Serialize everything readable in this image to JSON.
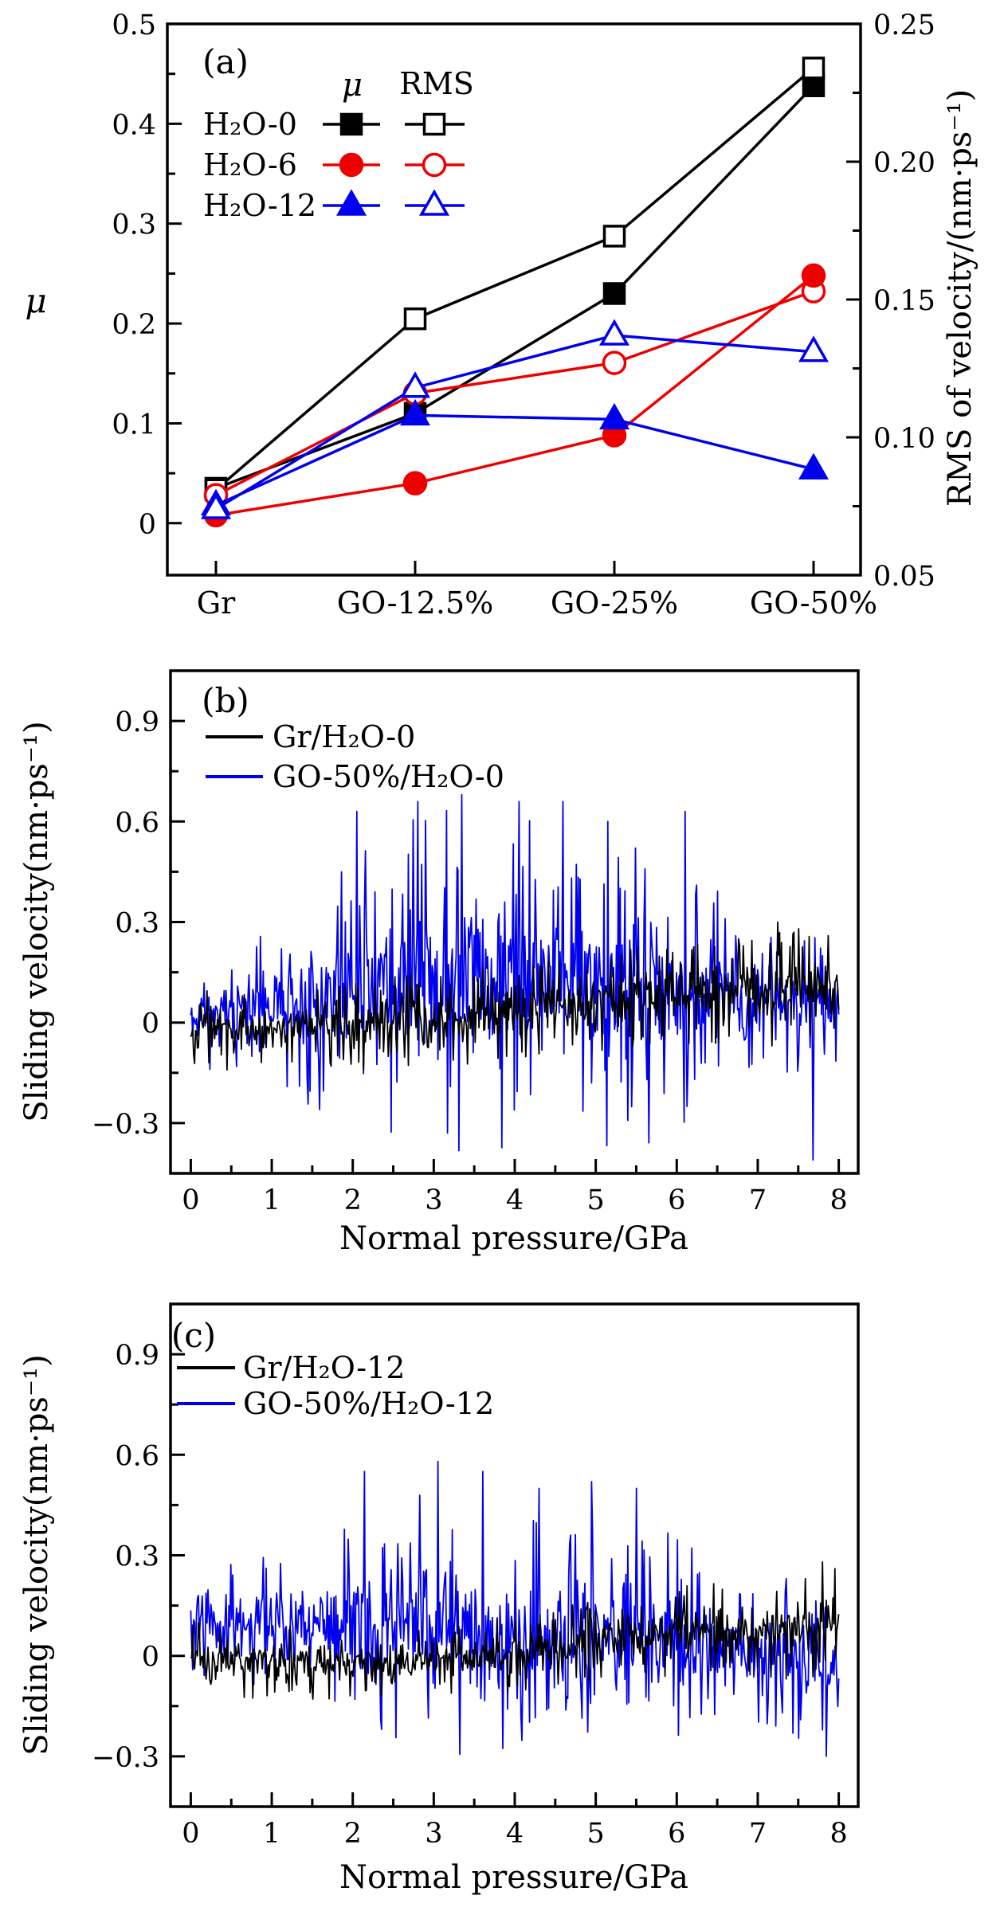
{
  "colors": {
    "black": "#000000",
    "red": "#ee0000",
    "blue": "#0000ee"
  },
  "chart_data": [
    {
      "id": "a",
      "type": "line",
      "panel_label": "(a)",
      "categories": [
        "Gr",
        "GO-12.5%",
        "GO-25%",
        "GO-50%"
      ],
      "left_axis": {
        "label": "μ",
        "range": [
          -0.052,
          0.5
        ],
        "ticks": [
          0,
          0.1,
          0.2,
          0.3,
          0.4,
          0.5
        ],
        "tick_labels": [
          "0",
          "0.1",
          "0.2",
          "0.3",
          "0.4",
          "0.5"
        ],
        "minor_ticks": [
          0.05,
          0.15,
          0.25,
          0.35,
          0.45
        ]
      },
      "right_axis": {
        "label": "RMS of velocity/(nm·ps⁻¹)",
        "range": [
          0.05,
          0.25
        ],
        "ticks": [
          0.05,
          0.1,
          0.15,
          0.2,
          0.25
        ],
        "tick_labels": [
          "0.05",
          "0.10",
          "0.15",
          "0.20",
          "0.25"
        ],
        "minor_ticks": [
          0.075,
          0.125,
          0.175,
          0.225
        ]
      },
      "legend": {
        "header_mu": "μ",
        "header_rms": "RMS",
        "rows": [
          {
            "label": "H₂O-0",
            "color": "#000000",
            "marker": "square"
          },
          {
            "label": "H₂O-6",
            "color": "#ee0000",
            "marker": "circle"
          },
          {
            "label": "H₂O-12",
            "color": "#0000ee",
            "marker": "triangle"
          }
        ]
      },
      "series": [
        {
          "name": "H₂O-0 μ",
          "axis": "left",
          "color": "#000000",
          "marker": "square",
          "fill": "filled",
          "values": [
            0.035,
            0.11,
            0.23,
            0.438
          ]
        },
        {
          "name": "H₂O-0 RMS",
          "axis": "right",
          "color": "#000000",
          "marker": "square",
          "fill": "open",
          "values": [
            0.081,
            0.143,
            0.173,
            0.234
          ]
        },
        {
          "name": "H₂O-6 RMS",
          "axis": "right",
          "color": "#ee0000",
          "marker": "circle",
          "fill": "open",
          "values": [
            0.079,
            0.116,
            0.127,
            0.153
          ]
        },
        {
          "name": "H₂O-6 μ",
          "axis": "left",
          "color": "#ee0000",
          "marker": "circle",
          "fill": "filled",
          "values": [
            0.008,
            0.04,
            0.088,
            0.248
          ]
        },
        {
          "name": "H₂O-12 μ",
          "axis": "left",
          "color": "#0000ee",
          "marker": "triangle",
          "fill": "filled",
          "values": [
            0.018,
            0.108,
            0.104,
            0.054
          ]
        },
        {
          "name": "H₂O-12 RMS",
          "axis": "right",
          "color": "#0000ee",
          "marker": "triangle",
          "fill": "open",
          "values": [
            0.074,
            0.118,
            0.137,
            0.131
          ]
        }
      ]
    },
    {
      "id": "b",
      "type": "line",
      "panel_label": "(b)",
      "xlabel": "Normal pressure/GPa",
      "ylabel": "Sliding velocity(nm·ps⁻¹)",
      "x_axis": {
        "range": [
          -0.25,
          8.24
        ],
        "ticks": [
          0,
          1,
          2,
          3,
          4,
          5,
          6,
          7,
          8
        ],
        "tick_labels": [
          "0",
          "1",
          "2",
          "3",
          "4",
          "5",
          "6",
          "7",
          "8"
        ],
        "minor_ticks": [
          0.5,
          1.5,
          2.5,
          3.5,
          4.5,
          5.5,
          6.5,
          7.5
        ]
      },
      "y_axis": {
        "range": [
          -0.45,
          1.05
        ],
        "ticks": [
          -0.3,
          0,
          0.3,
          0.6,
          0.9
        ],
        "tick_labels": [
          "−0.3",
          "0",
          "0.3",
          "0.6",
          "0.9"
        ],
        "minor_ticks": [
          -0.15,
          0.15,
          0.45,
          0.75
        ]
      },
      "legend": [
        {
          "label": "Gr/H₂O-0",
          "color": "#000000"
        },
        {
          "label": "GO-50%/H₂O-0",
          "color": "#0000ee"
        }
      ],
      "series": [
        {
          "name": "GO-50%/H₂O-0",
          "color": "#0000ee",
          "seed": 11,
          "n": 680,
          "x_span": [
            0,
            8
          ],
          "mean": [
            [
              0,
              0.02
            ],
            [
              1,
              0.06
            ],
            [
              2,
              0.12
            ],
            [
              3.5,
              0.14
            ],
            [
              5,
              0.12
            ],
            [
              6,
              0.1
            ],
            [
              7,
              0.07
            ],
            [
              8,
              0.05
            ]
          ],
          "amp": [
            [
              0,
              0.14
            ],
            [
              0.8,
              0.2
            ],
            [
              1.6,
              0.32
            ],
            [
              2.4,
              0.44
            ],
            [
              3.5,
              0.48
            ],
            [
              4.6,
              0.44
            ],
            [
              5.6,
              0.42
            ],
            [
              6.4,
              0.3
            ],
            [
              7,
              0.2
            ],
            [
              8,
              0.17
            ]
          ],
          "spikes": [
            [
              2.05,
              0.63
            ],
            [
              2.8,
              0.66
            ],
            [
              3.35,
              0.68
            ],
            [
              4.05,
              0.66
            ],
            [
              4.6,
              0.66
            ],
            [
              5.15,
              0.6
            ],
            [
              6.1,
              0.63
            ],
            [
              7.68,
              -0.41
            ]
          ]
        },
        {
          "name": "Gr/H₂O-0",
          "color": "#000000",
          "seed": 23,
          "n": 680,
          "x_span": [
            0,
            8
          ],
          "mean": [
            [
              0,
              -0.02
            ],
            [
              2,
              -0.01
            ],
            [
              4,
              0.03
            ],
            [
              5,
              0.06
            ],
            [
              6,
              0.09
            ],
            [
              8,
              0.1
            ]
          ],
          "amp": [
            [
              0,
              0.11
            ],
            [
              2,
              0.12
            ],
            [
              4,
              0.13
            ],
            [
              6,
              0.13
            ],
            [
              7,
              0.16
            ],
            [
              8,
              0.14
            ]
          ],
          "spikes": [
            [
              7.25,
              0.3
            ],
            [
              7.5,
              0.28
            ]
          ]
        }
      ]
    },
    {
      "id": "c",
      "type": "line",
      "panel_label": "(c)",
      "xlabel": "Normal pressure/GPa",
      "ylabel": "Sliding velocity(nm·ps⁻¹)",
      "x_axis": {
        "range": [
          -0.25,
          8.24
        ],
        "ticks": [
          0,
          1,
          2,
          3,
          4,
          5,
          6,
          7,
          8
        ],
        "tick_labels": [
          "0",
          "1",
          "2",
          "3",
          "4",
          "5",
          "6",
          "7",
          "8"
        ],
        "minor_ticks": [
          0.5,
          1.5,
          2.5,
          3.5,
          4.5,
          5.5,
          6.5,
          7.5
        ]
      },
      "y_axis": {
        "range": [
          -0.45,
          1.05
        ],
        "ticks": [
          -0.3,
          0,
          0.3,
          0.6,
          0.9
        ],
        "tick_labels": [
          "−0.3",
          "0",
          "0.3",
          "0.6",
          "0.9"
        ],
        "minor_ticks": [
          -0.15,
          0.15,
          0.45,
          0.75
        ]
      },
      "legend": [
        {
          "label": "Gr/H₂O-12",
          "color": "#000000"
        },
        {
          "label": "GO-50%/H₂O-12",
          "color": "#0000ee"
        }
      ],
      "series": [
        {
          "name": "GO-50%/H₂O-12",
          "color": "#0000ee",
          "seed": 31,
          "n": 680,
          "x_span": [
            0,
            8
          ],
          "mean": [
            [
              0,
              0.09
            ],
            [
              2,
              0.12
            ],
            [
              3.2,
              0.1
            ],
            [
              4,
              0.05
            ],
            [
              5,
              0.05
            ],
            [
              6,
              0.03
            ],
            [
              7,
              0.0
            ],
            [
              8,
              -0.02
            ]
          ],
          "amp": [
            [
              0,
              0.15
            ],
            [
              1.5,
              0.2
            ],
            [
              2.2,
              0.3
            ],
            [
              3.2,
              0.34
            ],
            [
              4.5,
              0.32
            ],
            [
              5.8,
              0.3
            ],
            [
              6.5,
              0.24
            ],
            [
              8,
              0.23
            ]
          ],
          "spikes": [
            [
              2.15,
              0.55
            ],
            [
              3.05,
              0.58
            ],
            [
              3.6,
              0.55
            ],
            [
              4.3,
              0.5
            ],
            [
              4.95,
              0.52
            ],
            [
              5.5,
              0.5
            ],
            [
              7.85,
              -0.3
            ]
          ]
        },
        {
          "name": "Gr/H₂O-12",
          "color": "#000000",
          "seed": 47,
          "n": 680,
          "x_span": [
            0,
            8
          ],
          "mean": [
            [
              0,
              -0.01
            ],
            [
              3,
              -0.02
            ],
            [
              4.5,
              0.02
            ],
            [
              6,
              0.07
            ],
            [
              8,
              0.09
            ]
          ],
          "amp": [
            [
              0,
              0.1
            ],
            [
              3,
              0.1
            ],
            [
              5,
              0.11
            ],
            [
              7,
              0.13
            ],
            [
              8,
              0.15
            ]
          ],
          "spikes": [
            [
              7.8,
              0.28
            ],
            [
              7.95,
              0.26
            ]
          ]
        }
      ]
    }
  ]
}
